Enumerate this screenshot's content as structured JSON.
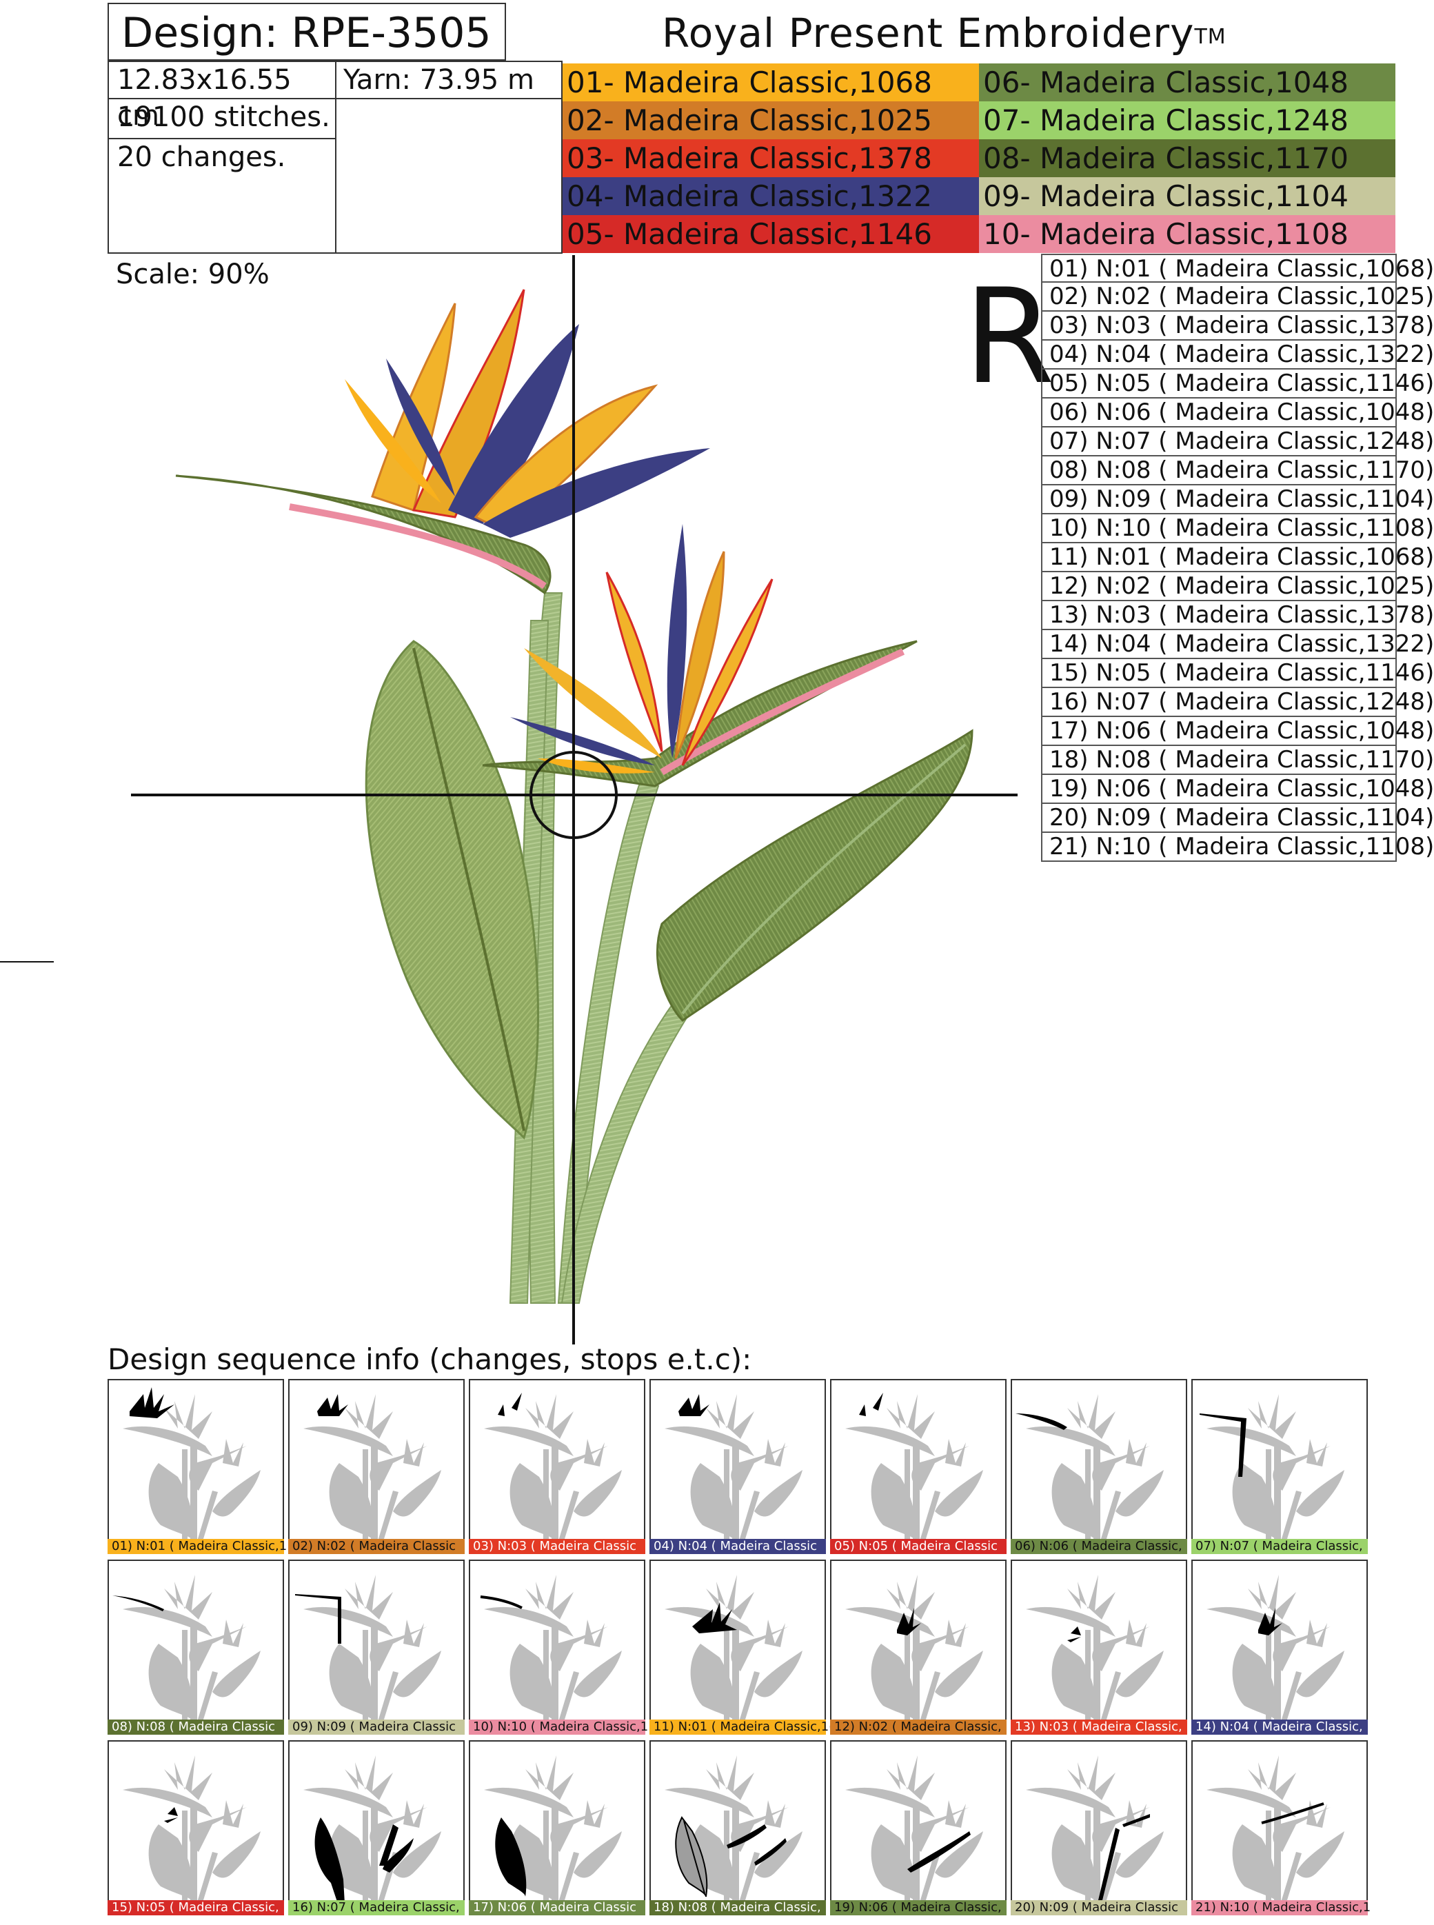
{
  "header": {
    "design_label": "Design: RPE-3505",
    "brand": "Royal Present Embroidery",
    "brand_mark": "TM"
  },
  "specs": {
    "size": "12.83x16.55 cm",
    "yarn": "Yarn: 73.95 m",
    "stitches": "19100 stitches.",
    "changes": "20 changes."
  },
  "palette": [
    {
      "label": "01- Madeira Classic,1068",
      "color": "#F9B11C",
      "text": "#111"
    },
    {
      "label": "02- Madeira Classic,1025",
      "color": "#D27C27",
      "text": "#111"
    },
    {
      "label": "03- Madeira Classic,1378",
      "color": "#E33A24",
      "text": "#fff"
    },
    {
      "label": "04- Madeira Classic,1322",
      "color": "#3C3F83",
      "text": "#fff"
    },
    {
      "label": "05- Madeira Classic,1146",
      "color": "#D62A27",
      "text": "#fff"
    },
    {
      "label": "06- Madeira Classic,1048",
      "color": "#6D8A45",
      "text": "#111"
    },
    {
      "label": "07- Madeira Classic,1248",
      "color": "#9BD26A",
      "text": "#111"
    },
    {
      "label": "08- Madeira Classic,1170",
      "color": "#5C7130",
      "text": "#fff"
    },
    {
      "label": "09- Madeira Classic,1104",
      "color": "#C6C79C",
      "text": "#111"
    },
    {
      "label": "10- Madeira Classic,1108",
      "color": "#EB8CA0",
      "text": "#111"
    }
  ],
  "scale": "Scale: 90%",
  "reference_mark": "R",
  "sequence": [
    "01) N:01 ( Madeira Classic,1068)",
    "02) N:02 ( Madeira Classic,1025)",
    "03) N:03 ( Madeira Classic,1378)",
    "04) N:04 ( Madeira Classic,1322)",
    "05) N:05 ( Madeira Classic,1146)",
    "06) N:06 ( Madeira Classic,1048)",
    "07) N:07 ( Madeira Classic,1248)",
    "08) N:08 ( Madeira Classic,1170)",
    "09) N:09 ( Madeira Classic,1104)",
    "10) N:10 ( Madeira Classic,1108)",
    "11) N:01 ( Madeira Classic,1068)",
    "12) N:02 ( Madeira Classic,1025)",
    "13) N:03 ( Madeira Classic,1378)",
    "14) N:04 ( Madeira Classic,1322)",
    "15) N:05 ( Madeira Classic,1146)",
    "16) N:07 ( Madeira Classic,1248)",
    "17) N:06 ( Madeira Classic,1048)",
    "18) N:08 ( Madeira Classic,1170)",
    "19) N:06 ( Madeira Classic,1048)",
    "20) N:09 ( Madeira Classic,1104)",
    "21) N:10 ( Madeira Classic,1108)"
  ],
  "sequence_heading": "Design sequence info (changes, stops e.t.c):",
  "thumbnails": [
    {
      "label": "01) N:01 ( Madeira Classic,1",
      "color": "#F9B11C",
      "text": "#111",
      "highlight": "flower1"
    },
    {
      "label": "02) N:02 ( Madeira Classic",
      "color": "#D27C27",
      "text": "#111",
      "highlight": "flower1-small"
    },
    {
      "label": "03) N:03 ( Madeira Classic",
      "color": "#E33A24",
      "text": "#fff",
      "highlight": "flower1-thin"
    },
    {
      "label": "04) N:04 ( Madeira Classic",
      "color": "#3C3F83",
      "text": "#fff",
      "highlight": "flower1-small"
    },
    {
      "label": "05) N:05 ( Madeira Classic",
      "color": "#D62A27",
      "text": "#fff",
      "highlight": "flower1-thin"
    },
    {
      "label": "06) N:06 ( Madeira Classic,",
      "color": "#6D8A45",
      "text": "#111",
      "highlight": "bract1"
    },
    {
      "label": "07) N:07 ( Madeira Classic,",
      "color": "#9BD26A",
      "text": "#111",
      "highlight": "stem1"
    },
    {
      "label": "08) N:08 ( Madeira Classic",
      "color": "#5C7130",
      "text": "#fff",
      "highlight": "bract1-thin"
    },
    {
      "label": "09) N:09 ( Madeira Classic",
      "color": "#C6C79C",
      "text": "#111",
      "highlight": "stem1-thin"
    },
    {
      "label": "10) N:10 ( Madeira Classic,1",
      "color": "#EB8CA0",
      "text": "#111",
      "highlight": "bract1-line"
    },
    {
      "label": "11) N:01 ( Madeira Classic,1(",
      "color": "#F9B11C",
      "text": "#111",
      "highlight": "flower2"
    },
    {
      "label": "12) N:02 ( Madeira Classic,",
      "color": "#D27C27",
      "text": "#111",
      "highlight": "flower2-small"
    },
    {
      "label": "13) N:03 ( Madeira Classic,",
      "color": "#E33A24",
      "text": "#fff",
      "highlight": "flower2-thin"
    },
    {
      "label": "14) N:04 ( Madeira Classic,",
      "color": "#3C3F83",
      "text": "#fff",
      "highlight": "flower2-small"
    },
    {
      "label": "15) N:05 ( Madeira Classic,",
      "color": "#D62A27",
      "text": "#fff",
      "highlight": "flower2-thin"
    },
    {
      "label": "16) N:07 ( Madeira Classic,",
      "color": "#9BD26A",
      "text": "#111",
      "highlight": "leaves"
    },
    {
      "label": "17) N:06 ( Madeira Classic",
      "color": "#6D8A45",
      "text": "#fff",
      "highlight": "leaf-left"
    },
    {
      "label": "18) N:08 ( Madeira Classic,",
      "color": "#5C7130",
      "text": "#fff",
      "highlight": "leaf-veins"
    },
    {
      "label": "19) N:06 ( Madeira Classic,",
      "color": "#6D8A45",
      "text": "#111",
      "highlight": "leaf-right"
    },
    {
      "label": "20) N:09 ( Madeira Classic",
      "color": "#C6C79C",
      "text": "#111",
      "highlight": "stems"
    },
    {
      "label": "21) N:10 ( Madeira Classic,1",
      "color": "#EB8CA0",
      "text": "#111",
      "highlight": "bract2-line"
    }
  ]
}
